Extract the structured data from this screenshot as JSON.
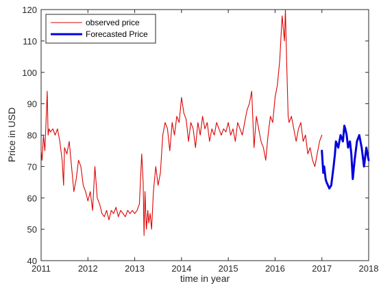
{
  "chart_data": {
    "type": "line",
    "title": "",
    "xlabel": "time in year",
    "ylabel": "Price in USD",
    "xlim": [
      2011,
      2018
    ],
    "ylim": [
      40,
      120
    ],
    "x_ticks": [
      2011,
      2012,
      2013,
      2014,
      2015,
      2016,
      2017,
      2018
    ],
    "y_ticks": [
      40,
      50,
      60,
      70,
      80,
      90,
      100,
      110,
      120
    ],
    "grid": false,
    "legend_position": "top-left",
    "series": [
      {
        "name": "observed price",
        "color": "#dd0000",
        "x": [
          2011.0,
          2011.02,
          2011.05,
          2011.08,
          2011.1,
          2011.13,
          2011.15,
          2011.17,
          2011.2,
          2011.25,
          2011.3,
          2011.35,
          2011.4,
          2011.45,
          2011.48,
          2011.5,
          2011.55,
          2011.6,
          2011.65,
          2011.7,
          2011.75,
          2011.8,
          2011.85,
          2011.9,
          2011.95,
          2012.0,
          2012.05,
          2012.1,
          2012.15,
          2012.2,
          2012.25,
          2012.3,
          2012.35,
          2012.4,
          2012.45,
          2012.5,
          2012.55,
          2012.6,
          2012.65,
          2012.7,
          2012.75,
          2012.8,
          2012.85,
          2012.9,
          2012.95,
          2013.0,
          2013.05,
          2013.1,
          2013.15,
          2013.18,
          2013.2,
          2013.22,
          2013.25,
          2013.28,
          2013.3,
          2013.33,
          2013.36,
          2013.4,
          2013.45,
          2013.5,
          2013.55,
          2013.6,
          2013.65,
          2013.7,
          2013.75,
          2013.8,
          2013.85,
          2013.9,
          2013.95,
          2014.0,
          2014.05,
          2014.1,
          2014.15,
          2014.2,
          2014.25,
          2014.3,
          2014.35,
          2014.4,
          2014.45,
          2014.5,
          2014.55,
          2014.6,
          2014.65,
          2014.7,
          2014.75,
          2014.8,
          2014.85,
          2014.9,
          2014.95,
          2015.0,
          2015.05,
          2015.1,
          2015.15,
          2015.2,
          2015.25,
          2015.3,
          2015.35,
          2015.4,
          2015.45,
          2015.5,
          2015.55,
          2015.6,
          2015.65,
          2015.7,
          2015.75,
          2015.8,
          2015.85,
          2015.9,
          2015.95,
          2016.0,
          2016.05,
          2016.1,
          2016.15,
          2016.2,
          2016.22,
          2016.25,
          2016.28,
          2016.3,
          2016.35,
          2016.4,
          2016.45,
          2016.5,
          2016.55,
          2016.6,
          2016.65,
          2016.7,
          2016.75,
          2016.8,
          2016.85,
          2016.9,
          2016.95,
          2017.0
        ],
        "y": [
          75,
          72,
          80,
          75,
          82,
          94,
          80,
          82,
          81,
          82,
          80,
          82,
          78,
          72,
          64,
          76,
          74,
          78,
          70,
          62,
          66,
          72,
          70,
          64,
          62,
          59,
          62,
          56,
          70,
          60,
          58,
          55,
          54,
          56,
          53,
          56,
          55,
          57,
          54,
          56,
          55,
          54,
          56,
          55,
          56,
          55,
          56,
          58,
          74,
          65,
          48,
          62,
          50,
          56,
          52,
          55,
          50,
          62,
          70,
          64,
          68,
          80,
          84,
          82,
          75,
          84,
          80,
          86,
          84,
          92,
          87,
          85,
          78,
          84,
          82,
          76,
          84,
          80,
          86,
          82,
          84,
          78,
          82,
          80,
          84,
          82,
          80,
          82,
          81,
          84,
          80,
          82,
          78,
          84,
          82,
          80,
          84,
          88,
          90,
          94,
          76,
          86,
          82,
          78,
          76,
          72,
          80,
          86,
          84,
          92,
          96,
          104,
          118,
          110,
          120,
          102,
          86,
          84,
          86,
          82,
          78,
          82,
          84,
          78,
          80,
          74,
          76,
          72,
          70,
          74,
          78,
          80
        ],
        "width": 1.1
      },
      {
        "name": "Forecasted Price",
        "color": "#0000dd",
        "x": [
          2017.0,
          2017.03,
          2017.05,
          2017.08,
          2017.1,
          2017.13,
          2017.16,
          2017.2,
          2017.25,
          2017.28,
          2017.3,
          2017.35,
          2017.4,
          2017.45,
          2017.48,
          2017.5,
          2017.53,
          2017.56,
          2017.6,
          2017.63,
          2017.66,
          2017.7,
          2017.75,
          2017.8,
          2017.85,
          2017.9,
          2017.95,
          2018.0
        ],
        "y": [
          75,
          68,
          70,
          66,
          65,
          64,
          63,
          64,
          70,
          74,
          78,
          76,
          80,
          78,
          83,
          82,
          80,
          76,
          78,
          74,
          66,
          72,
          78,
          80,
          76,
          70,
          76,
          72
        ],
        "width": 3
      }
    ]
  }
}
